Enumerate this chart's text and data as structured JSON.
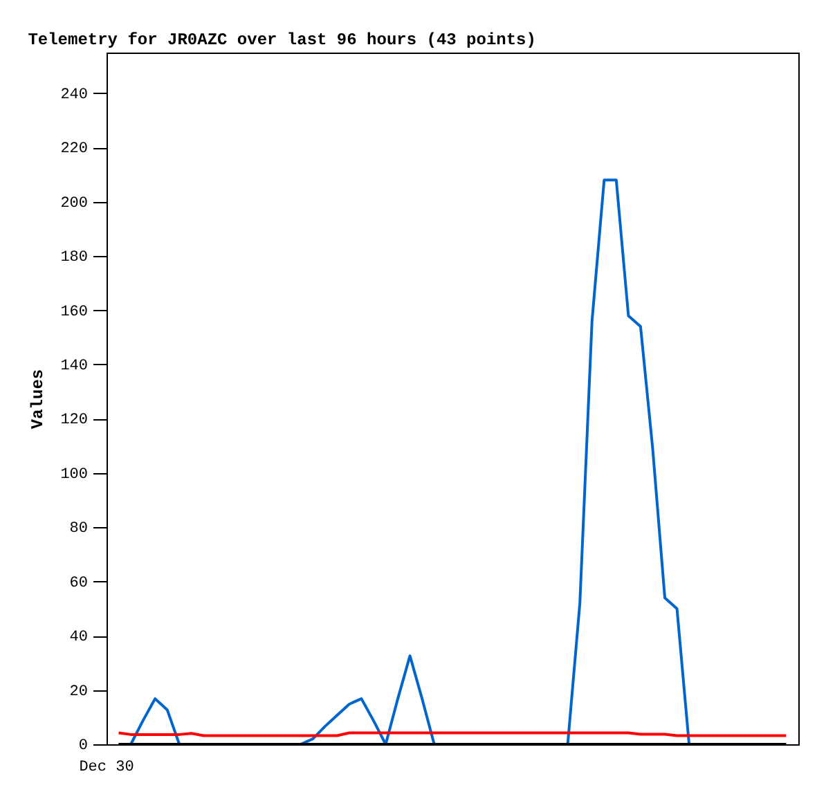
{
  "chart_data": {
    "type": "line",
    "title": "Telemetry for JR0AZC over last 96 hours (43 points)",
    "ylabel": "Values",
    "annotations": [
      "Dec 30"
    ],
    "categories": [
      null,
      null,
      null,
      null,
      null,
      null,
      null,
      null,
      null,
      null,
      null,
      null,
      null,
      null,
      null,
      null,
      null,
      null,
      null,
      null,
      null,
      null,
      null,
      null,
      null,
      null,
      null,
      null,
      null,
      null,
      null,
      null,
      null,
      null,
      null,
      null,
      null,
      null,
      null,
      null,
      null,
      null,
      null,
      null,
      null,
      null,
      null,
      null,
      null,
      null,
      null,
      null,
      null,
      null,
      null,
      null
    ],
    "ylim": [
      0,
      255
    ],
    "yticks": [
      0,
      20,
      40,
      60,
      80,
      100,
      120,
      140,
      160,
      180,
      200,
      220,
      240
    ],
    "grid": false,
    "legend": false,
    "marker": "none",
    "line_style": "solid",
    "series": [
      {
        "color": "#0066cc",
        "values": [
          0,
          0,
          8.7,
          16.8,
          12.7,
          0,
          0,
          0,
          0,
          0,
          0,
          0,
          0,
          0,
          0,
          0,
          2,
          6.6,
          10.7,
          14.8,
          16.8,
          8.7,
          0,
          16.8,
          32.6,
          16.8,
          0,
          0,
          0,
          0,
          0,
          0,
          0,
          0,
          0,
          0,
          0,
          0,
          52,
          156,
          208,
          208,
          158,
          154,
          109,
          54,
          50,
          0,
          null,
          null,
          null,
          null,
          null,
          null,
          null,
          null
        ]
      },
      {
        "color": "#ff0000",
        "values": [
          4.2,
          3.6,
          3.6,
          3.6,
          3.6,
          3.6,
          4,
          3.2,
          3.2,
          3.2,
          3.2,
          3.2,
          3.2,
          3.2,
          3.2,
          3.2,
          3.2,
          3.2,
          3.2,
          4.2,
          4.2,
          4.2,
          4.2,
          4.2,
          4.2,
          4.2,
          4.2,
          4.2,
          4.2,
          4.2,
          4.2,
          4.2,
          4.2,
          4.2,
          4.2,
          4.2,
          4.2,
          4.2,
          4.2,
          4.2,
          4.2,
          4.2,
          4.2,
          3.7,
          3.7,
          3.7,
          3.2,
          3.2,
          3.2,
          3.2,
          3.2,
          3.2,
          3.2,
          3.2,
          3.2,
          3.2
        ]
      },
      {
        "color": "#000000",
        "values": [
          0,
          0,
          0,
          0,
          0,
          0,
          0,
          0,
          0,
          0,
          0,
          0,
          0,
          0,
          0,
          0,
          0,
          0,
          0,
          0,
          0,
          0,
          0,
          0,
          0,
          0,
          0,
          0,
          0,
          0,
          0,
          0,
          0,
          0,
          0,
          0,
          0,
          0,
          0,
          0,
          0,
          0,
          0,
          0,
          0,
          0,
          0,
          0,
          0,
          0,
          0,
          0,
          0,
          0,
          0,
          0
        ]
      }
    ]
  }
}
